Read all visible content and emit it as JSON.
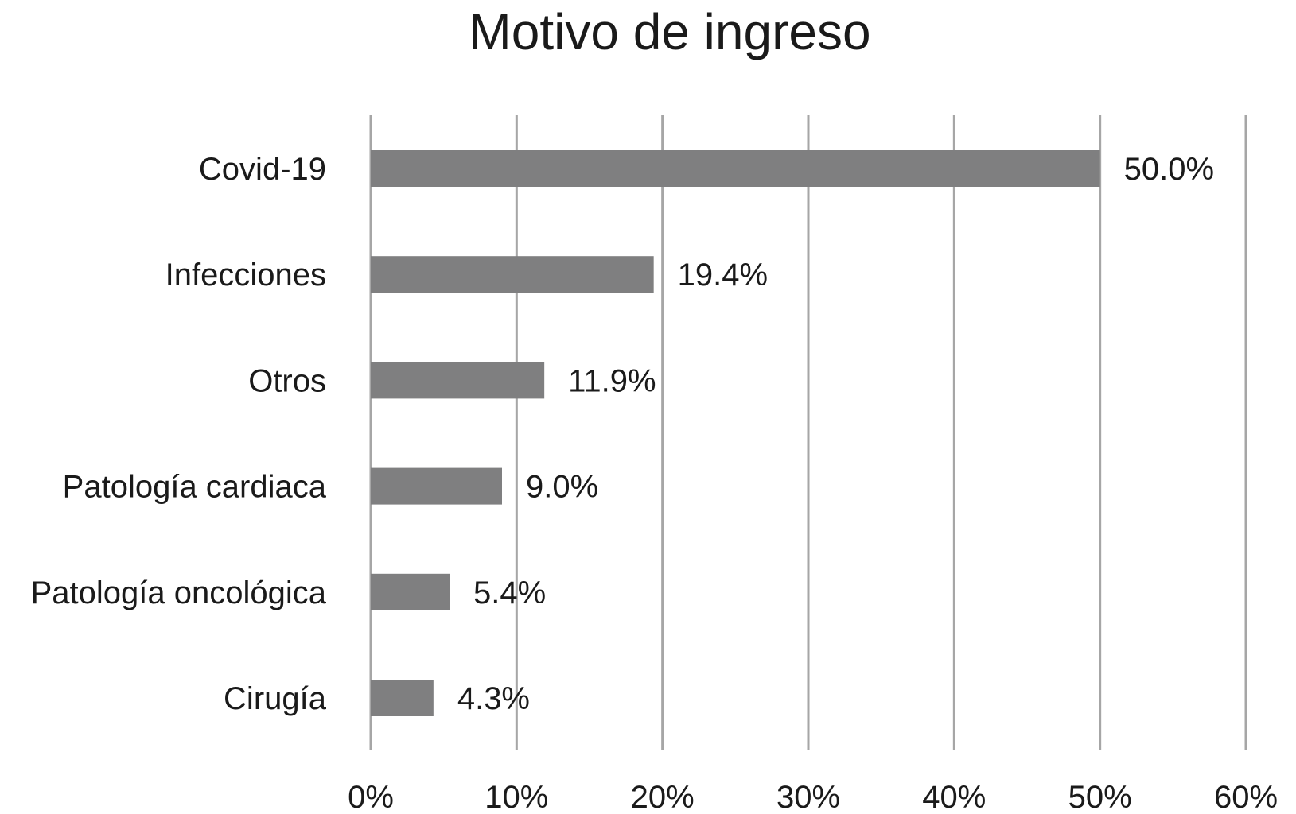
{
  "chart_data": {
    "type": "bar",
    "orientation": "horizontal",
    "title": "Motivo de ingreso",
    "categories": [
      "Covid-19",
      "Infecciones",
      "Otros",
      "Patología cardiaca",
      "Patología oncológica",
      "Cirugía"
    ],
    "values": [
      50.0,
      19.4,
      11.9,
      9.0,
      5.4,
      4.3
    ],
    "value_labels": [
      "50.0%",
      "19.4%",
      "11.9%",
      "9.0%",
      "5.4%",
      "4.3%"
    ],
    "xlim": [
      0,
      60
    ],
    "xticks": [
      0,
      10,
      20,
      30,
      40,
      50,
      60
    ],
    "xtick_labels": [
      "0%",
      "10%",
      "20%",
      "30%",
      "40%",
      "50%",
      "60%"
    ],
    "xlabel": "",
    "ylabel": "",
    "grid": "vertical",
    "legend": "none",
    "bar_color": "#7f7f80",
    "grid_color": "#a6a6a6"
  }
}
